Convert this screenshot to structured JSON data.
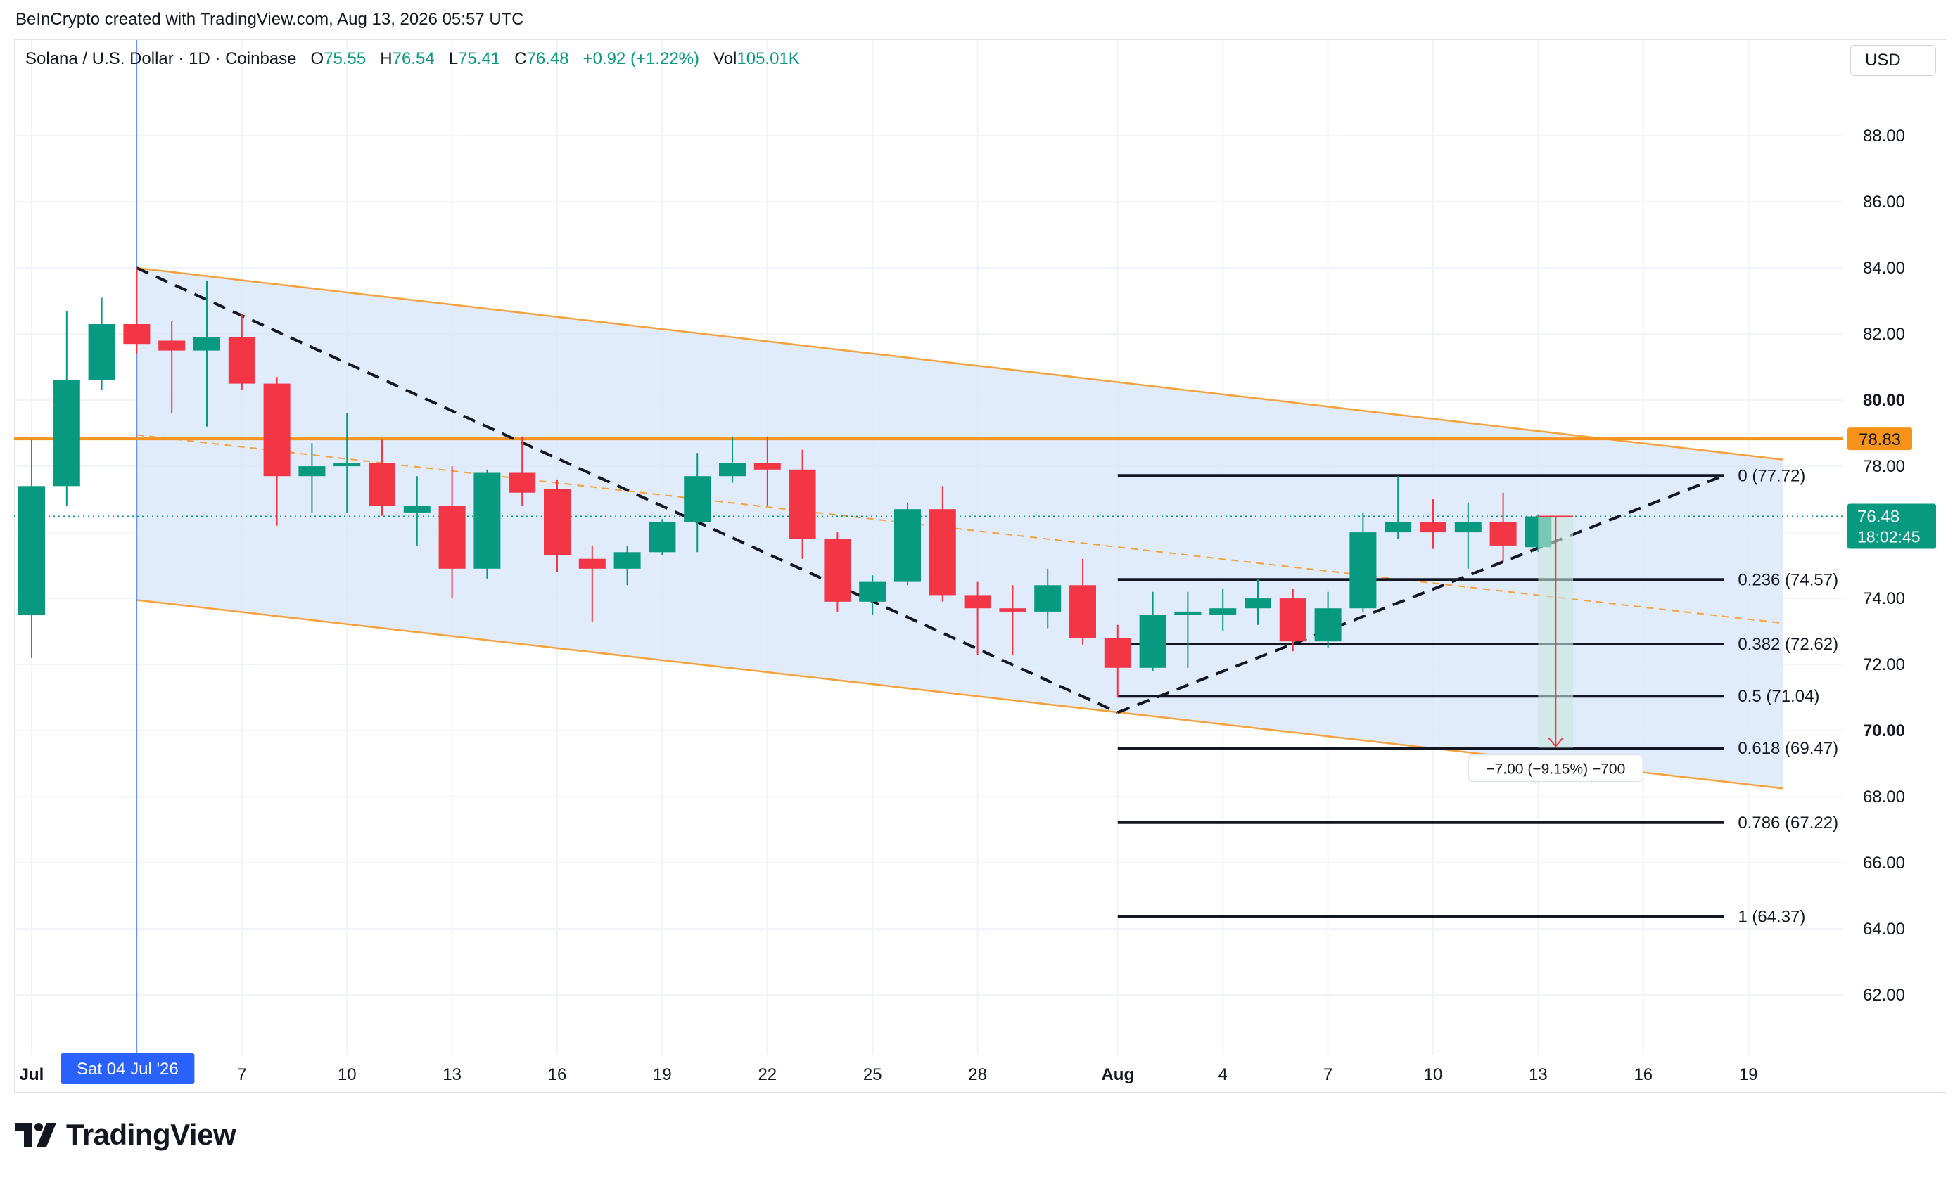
{
  "header": {
    "attribution": "BeInCrypto created with TradingView.com, Aug 13, 2026 05:57 UTC"
  },
  "symbol": {
    "name": "Solana / U.S. Dollar · 1D · Coinbase",
    "open_label": "O",
    "open": "75.55",
    "high_label": "H",
    "high": "76.54",
    "low_label": "L",
    "low": "75.41",
    "close_label": "C",
    "close": "76.48",
    "change": "+0.92 (+1.22%)",
    "vol_label": "Vol",
    "vol": "105.01K"
  },
  "currency": "USD",
  "footer": {
    "brand": "TradingView"
  },
  "colors": {
    "up": "#089981",
    "down": "#f23645",
    "channel_fill": "#dbe8fb",
    "channel_line": "#f7a13a",
    "resistance": "#f7931a",
    "fib": "#131722",
    "grid": "#f0f3fa",
    "cursor": "#2962ff"
  },
  "chart_data": {
    "type": "candlestick",
    "title": "",
    "ylim": [
      60.3,
      90.3
    ],
    "y_ticks": [
      "62.00",
      "64.00",
      "66.00",
      "68.00",
      "70.00",
      "72.00",
      "74.00",
      "76.00",
      "78.00",
      "80.00",
      "82.00",
      "84.00",
      "86.00",
      "88.00"
    ],
    "y_ticks_bold": [
      "70.00",
      "80.00"
    ],
    "x_ticks": [
      "Jul",
      "7",
      "10",
      "13",
      "16",
      "19",
      "22",
      "25",
      "28",
      "Aug",
      "4",
      "7",
      "10",
      "13",
      "16",
      "19"
    ],
    "x_ticks_bold": [
      "Jul",
      "Aug"
    ],
    "x_ticks_day_index": [
      0,
      6,
      9,
      12,
      15,
      18,
      21,
      24,
      27,
      31,
      34,
      37,
      40,
      43,
      46,
      49
    ],
    "candles": [
      {
        "date": "Jul 1",
        "o": 73.5,
        "h": 78.8,
        "l": 72.2,
        "c": 77.4
      },
      {
        "date": "Jul 2",
        "o": 77.4,
        "h": 82.7,
        "l": 76.8,
        "c": 80.6
      },
      {
        "date": "Jul 3",
        "o": 80.6,
        "h": 83.1,
        "l": 80.3,
        "c": 82.3
      },
      {
        "date": "Jul 4",
        "o": 82.3,
        "h": 84.0,
        "l": 81.4,
        "c": 81.7
      },
      {
        "date": "Jul 5",
        "o": 81.8,
        "h": 82.4,
        "l": 79.6,
        "c": 81.5
      },
      {
        "date": "Jul 6",
        "o": 81.5,
        "h": 83.6,
        "l": 79.2,
        "c": 81.9
      },
      {
        "date": "Jul 7",
        "o": 81.9,
        "h": 82.6,
        "l": 80.3,
        "c": 80.5
      },
      {
        "date": "Jul 8",
        "o": 80.5,
        "h": 80.7,
        "l": 76.2,
        "c": 77.7
      },
      {
        "date": "Jul 9",
        "o": 77.7,
        "h": 78.7,
        "l": 76.6,
        "c": 78.0
      },
      {
        "date": "Jul 10",
        "o": 78.0,
        "h": 79.6,
        "l": 76.6,
        "c": 78.1
      },
      {
        "date": "Jul 11",
        "o": 78.1,
        "h": 78.8,
        "l": 76.5,
        "c": 76.8
      },
      {
        "date": "Jul 12",
        "o": 76.6,
        "h": 77.7,
        "l": 75.6,
        "c": 76.8
      },
      {
        "date": "Jul 13",
        "o": 76.8,
        "h": 78.0,
        "l": 74.0,
        "c": 74.9
      },
      {
        "date": "Jul 14",
        "o": 74.9,
        "h": 77.9,
        "l": 74.6,
        "c": 77.8
      },
      {
        "date": "Jul 15",
        "o": 77.8,
        "h": 78.9,
        "l": 76.8,
        "c": 77.2
      },
      {
        "date": "Jul 16",
        "o": 77.3,
        "h": 77.6,
        "l": 74.8,
        "c": 75.3
      },
      {
        "date": "Jul 17",
        "o": 75.2,
        "h": 75.6,
        "l": 73.3,
        "c": 74.9
      },
      {
        "date": "Jul 18",
        "o": 74.9,
        "h": 75.6,
        "l": 74.4,
        "c": 75.4
      },
      {
        "date": "Jul 19",
        "o": 75.4,
        "h": 76.4,
        "l": 75.3,
        "c": 76.3
      },
      {
        "date": "Jul 20",
        "o": 76.3,
        "h": 78.4,
        "l": 75.4,
        "c": 77.7
      },
      {
        "date": "Jul 21",
        "o": 77.7,
        "h": 78.9,
        "l": 77.5,
        "c": 78.1
      },
      {
        "date": "Jul 22",
        "o": 78.1,
        "h": 78.9,
        "l": 76.8,
        "c": 77.9
      },
      {
        "date": "Jul 23",
        "o": 77.9,
        "h": 78.5,
        "l": 75.2,
        "c": 75.8
      },
      {
        "date": "Jul 24",
        "o": 75.8,
        "h": 76.0,
        "l": 73.6,
        "c": 73.9
      },
      {
        "date": "Jul 25",
        "o": 73.9,
        "h": 74.7,
        "l": 73.5,
        "c": 74.5
      },
      {
        "date": "Jul 26",
        "o": 74.5,
        "h": 76.9,
        "l": 74.4,
        "c": 76.7
      },
      {
        "date": "Jul 27",
        "o": 76.7,
        "h": 77.4,
        "l": 73.9,
        "c": 74.1
      },
      {
        "date": "Jul 28",
        "o": 74.1,
        "h": 74.5,
        "l": 72.3,
        "c": 73.7
      },
      {
        "date": "Jul 29",
        "o": 73.7,
        "h": 74.4,
        "l": 72.3,
        "c": 73.6
      },
      {
        "date": "Jul 30",
        "o": 73.6,
        "h": 74.9,
        "l": 73.1,
        "c": 74.4
      },
      {
        "date": "Jul 31",
        "o": 74.4,
        "h": 75.2,
        "l": 72.6,
        "c": 72.8
      },
      {
        "date": "Aug 1",
        "o": 72.8,
        "h": 73.2,
        "l": 71.0,
        "c": 71.9
      },
      {
        "date": "Aug 2",
        "o": 71.9,
        "h": 74.2,
        "l": 71.8,
        "c": 73.5
      },
      {
        "date": "Aug 3",
        "o": 73.5,
        "h": 74.2,
        "l": 71.9,
        "c": 73.6
      },
      {
        "date": "Aug 4",
        "o": 73.5,
        "h": 74.3,
        "l": 73.0,
        "c": 73.7
      },
      {
        "date": "Aug 5",
        "o": 73.7,
        "h": 74.6,
        "l": 73.2,
        "c": 74.0
      },
      {
        "date": "Aug 6",
        "o": 74.0,
        "h": 74.3,
        "l": 72.4,
        "c": 72.7
      },
      {
        "date": "Aug 7",
        "o": 72.7,
        "h": 74.2,
        "l": 72.5,
        "c": 73.7
      },
      {
        "date": "Aug 8",
        "o": 73.7,
        "h": 76.6,
        "l": 73.6,
        "c": 76.0
      },
      {
        "date": "Aug 9",
        "o": 76.0,
        "h": 77.7,
        "l": 75.8,
        "c": 76.3
      },
      {
        "date": "Aug 10",
        "o": 76.3,
        "h": 77.0,
        "l": 75.5,
        "c": 76.0
      },
      {
        "date": "Aug 11",
        "o": 76.0,
        "h": 76.9,
        "l": 74.9,
        "c": 76.3
      },
      {
        "date": "Aug 12",
        "o": 76.3,
        "h": 77.2,
        "l": 75.1,
        "c": 75.6
      },
      {
        "date": "Aug 13",
        "o": 75.55,
        "h": 76.54,
        "l": 75.41,
        "c": 76.48
      }
    ],
    "channel": {
      "upper": [
        {
          "day": 3,
          "price": 84.0
        },
        {
          "day": 50,
          "price": 78.2
        }
      ],
      "lower": [
        {
          "day": 3,
          "price": 73.95
        },
        {
          "day": 50,
          "price": 68.25
        }
      ],
      "midline": [
        {
          "day": 3,
          "price": 78.95
        },
        {
          "day": 50,
          "price": 73.25
        }
      ]
    },
    "resistance": {
      "price": 78.83,
      "label": "78.83"
    },
    "last_price": {
      "price": 76.48,
      "label": "76.48",
      "countdown": "18:02:45"
    },
    "trend_lines": [
      [
        {
          "day": 3,
          "price": 84.0
        },
        {
          "day": 31,
          "price": 70.55
        }
      ],
      [
        {
          "day": 31,
          "price": 70.55
        },
        {
          "day": 48.3,
          "price": 77.72
        }
      ]
    ],
    "fibonacci": {
      "start_day": 31,
      "end_day": 48.3,
      "levels": [
        {
          "label": "0 (77.72)",
          "price": 77.72
        },
        {
          "label": "0.236 (74.57)",
          "price": 74.57
        },
        {
          "label": "0.382 (72.62)",
          "price": 72.62
        },
        {
          "label": "0.5 (71.04)",
          "price": 71.04
        },
        {
          "label": "0.618 (69.47)",
          "price": 69.47
        },
        {
          "label": "0.786 (67.22)",
          "price": 67.22
        },
        {
          "label": "1 (64.37)",
          "price": 64.37
        }
      ]
    },
    "measure": {
      "from_price": 76.48,
      "to_price": 69.48,
      "day_from": 43,
      "day_to": 44,
      "label": "−7.00 (−9.15%) −700"
    },
    "cursor": {
      "day": 3,
      "label": "Sat 04 Jul '26"
    }
  }
}
